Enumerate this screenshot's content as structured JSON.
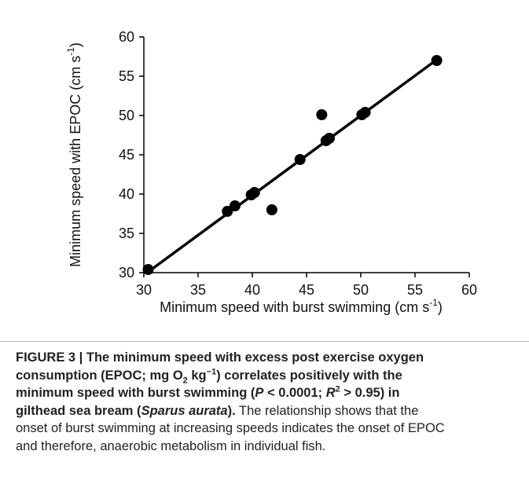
{
  "chart_data": {
    "type": "scatter",
    "x_label": [
      "Minimum speed with burst swimming (cm s",
      "-1",
      ")"
    ],
    "y_label": [
      "Minimum speed with EPOC (cm s",
      "-1",
      ")"
    ],
    "x": [
      30.4,
      37.7,
      38.4,
      39.9,
      40.2,
      41.8,
      44.4,
      46.4,
      46.8,
      47.1,
      50.1,
      50.4,
      57.0
    ],
    "series": [
      {
        "color": "#000000",
        "values": [
          30.4,
          37.8,
          38.5,
          39.9,
          40.2,
          38.0,
          44.4,
          50.1,
          46.8,
          47.1,
          50.1,
          50.4,
          57.0
        ]
      }
    ],
    "fit_line": {
      "x": [
        30.4,
        57.0
      ],
      "y": [
        30.1,
        57.1
      ]
    },
    "xlim": [
      30,
      60
    ],
    "ylim": [
      30,
      60
    ],
    "xticks": [
      30,
      35,
      40,
      45,
      50,
      55,
      60
    ],
    "yticks": [
      30,
      35,
      40,
      45,
      50,
      55,
      60
    ]
  },
  "caption": [
    "FIGURE 3 | The minimum speed with excess post exercise oxygen",
    "consumption (EPOC; mg O",
    "2",
    " kg",
    "−1",
    ") correlates positively with the",
    "minimum speed with burst swimming (",
    "P",
    " < 0.0001; ",
    "R",
    "2",
    " > 0.95) in",
    "gilthead sea bream (",
    "Sparus aurata",
    ").",
    " The relationship shows that the",
    "onset of burst swimming at increasing speeds indicates the onset of EPOC",
    "and therefore, anaerobic metabolism in individual fish."
  ]
}
